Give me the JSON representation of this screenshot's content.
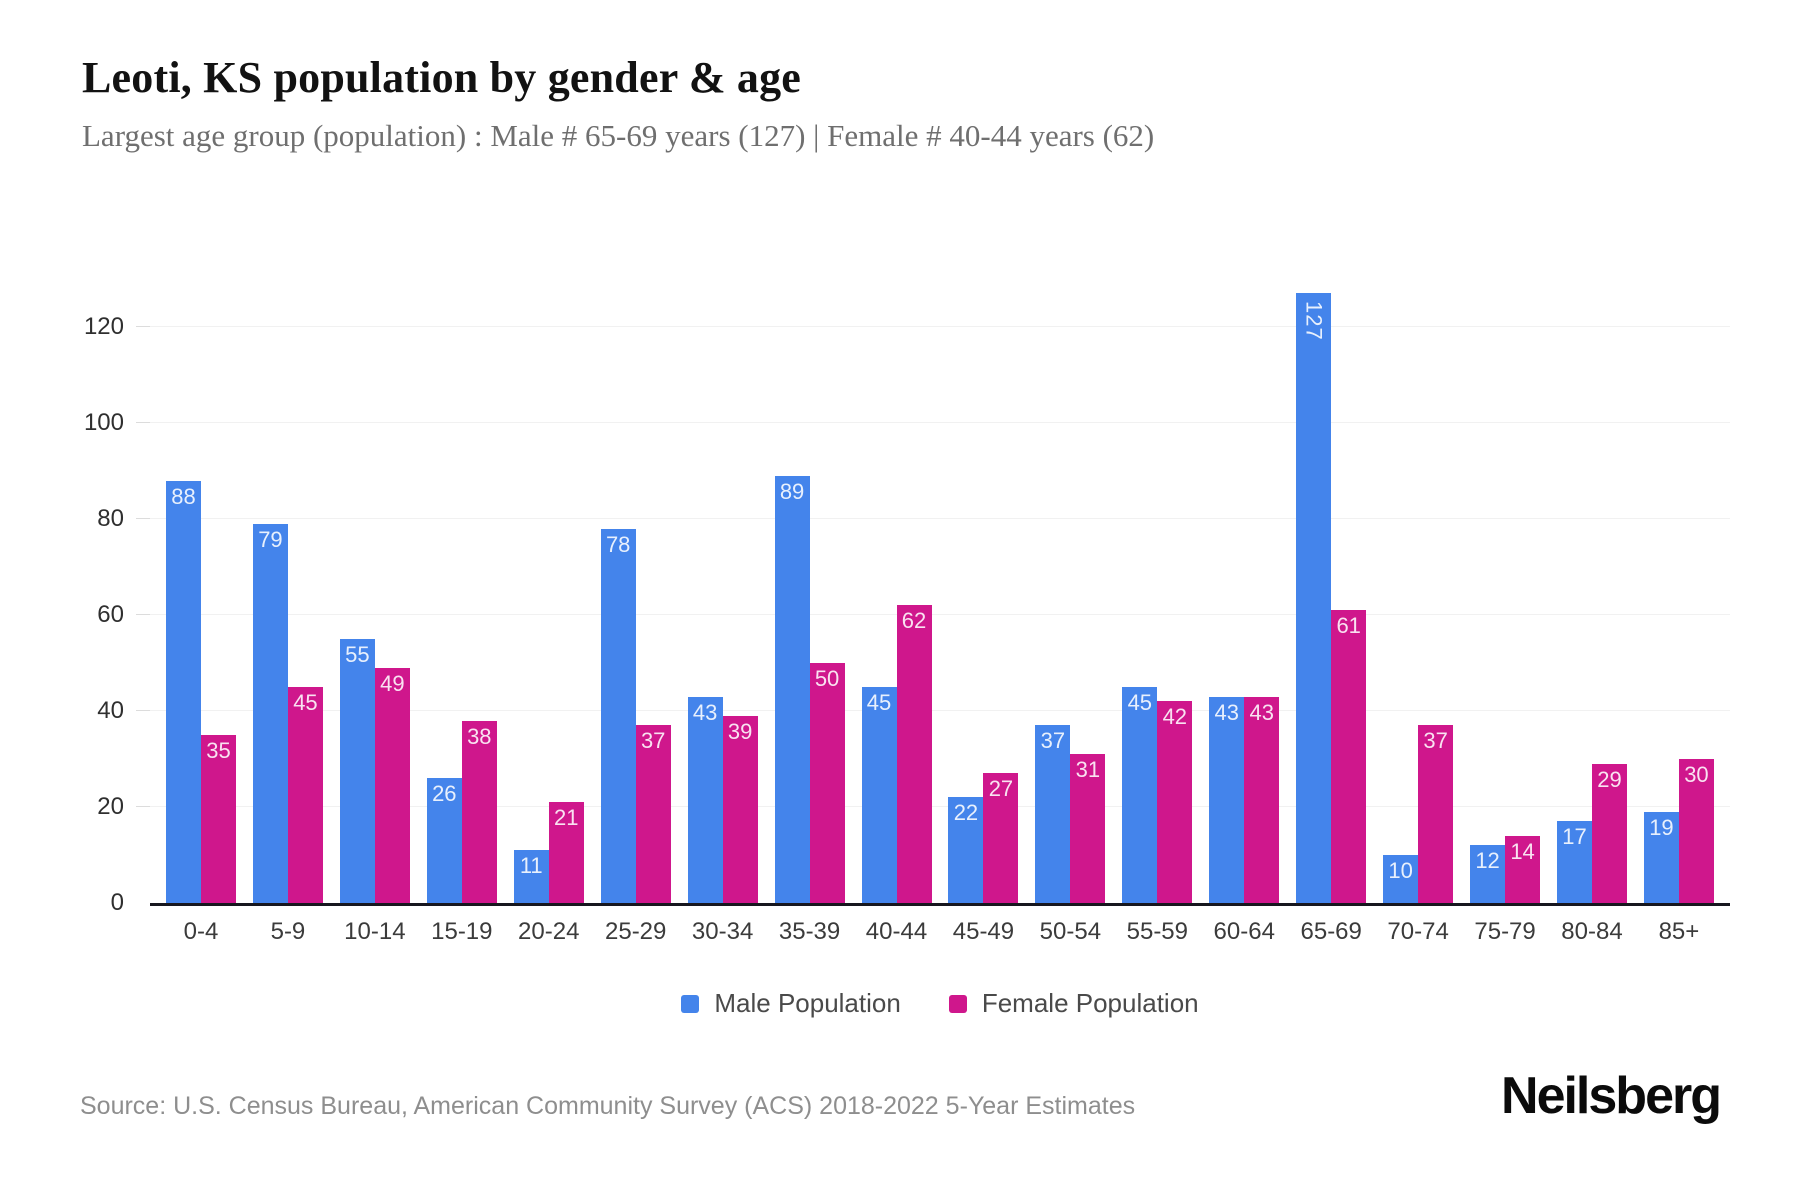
{
  "header": {
    "title": "Leoti, KS population by gender & age",
    "subtitle": "Largest age group (population) : Male # 65-69 years (127) | Female # 40-44 years (62)"
  },
  "chart_data": {
    "type": "bar",
    "title": "Leoti, KS population by gender & age",
    "categories": [
      "0-4",
      "5-9",
      "10-14",
      "15-19",
      "20-24",
      "25-29",
      "30-34",
      "35-39",
      "40-44",
      "45-49",
      "50-54",
      "55-59",
      "60-64",
      "65-69",
      "70-74",
      "75-79",
      "80-84",
      "85+"
    ],
    "series": [
      {
        "name": "Male Population",
        "color": "#4484eb",
        "values": [
          88,
          79,
          55,
          26,
          11,
          78,
          43,
          89,
          45,
          22,
          37,
          45,
          43,
          127,
          10,
          12,
          17,
          19
        ]
      },
      {
        "name": "Female Population",
        "color": "#cf178c",
        "values": [
          35,
          45,
          49,
          38,
          21,
          37,
          39,
          50,
          62,
          27,
          31,
          42,
          43,
          61,
          37,
          14,
          29,
          30
        ]
      }
    ],
    "xlabel": "",
    "ylabel": "",
    "ylim": [
      0,
      128
    ],
    "yticks": [
      0,
      20,
      40,
      60,
      80,
      100,
      120
    ],
    "grid": "horizontal",
    "legend_position": "bottom",
    "bar_label_color": "rgba(255,255,255,0.88)",
    "axis_line_color": "#17171f",
    "gridline_color": "#f1f1f1"
  },
  "footer": {
    "source": "Source: U.S. Census Bureau, American Community Survey (ACS) 2018-2022 5-Year Estimates",
    "brand": "Neilsberg"
  }
}
